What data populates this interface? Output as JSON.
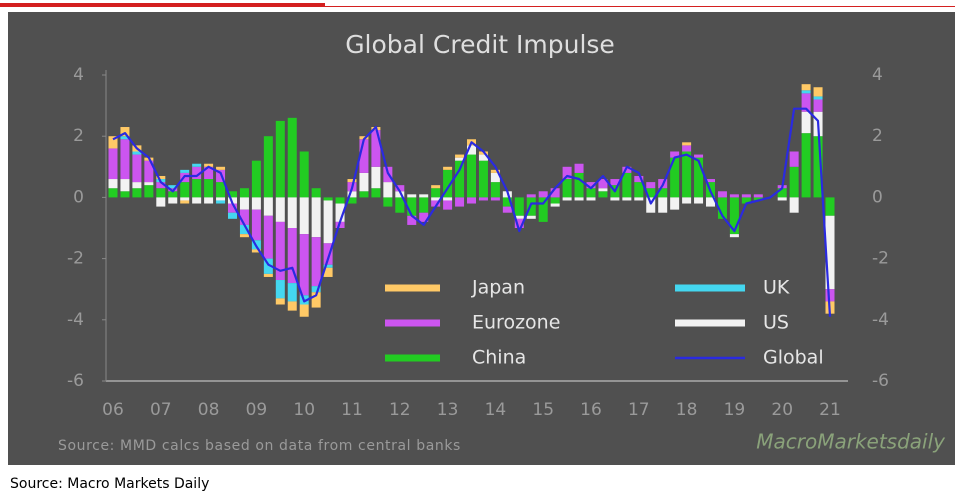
{
  "chart_data": {
    "type": "bar",
    "stacked": true,
    "title": "Global Credit Impulse",
    "source_note": "Source: MMD calcs based on data from central banks",
    "logo": "MacroMarketsdaily",
    "caption": "Source: Macro Markets Daily",
    "categories": [
      "06",
      null,
      null,
      null,
      "07",
      null,
      null,
      null,
      "08",
      null,
      null,
      null,
      "09",
      null,
      null,
      null,
      "10",
      null,
      null,
      null,
      "11",
      null,
      null,
      null,
      "12",
      null,
      null,
      null,
      "13",
      null,
      null,
      null,
      "14",
      null,
      null,
      null,
      "15",
      null,
      null,
      null,
      "16",
      null,
      null,
      null,
      "17",
      null,
      null,
      null,
      "18",
      null,
      null,
      null,
      "19",
      null,
      null,
      null,
      "20",
      null,
      null,
      null,
      "21"
    ],
    "ylim": [
      -6,
      4
    ],
    "yticks": [
      -6,
      -4,
      -2,
      0,
      2,
      4
    ],
    "series": [
      {
        "name": "Japan",
        "color": "#ffc966",
        "values": [
          0.4,
          0.3,
          0.2,
          0.1,
          0.1,
          0.0,
          -0.1,
          0.0,
          0.1,
          0.1,
          0.0,
          -0.1,
          -0.1,
          -0.1,
          -0.2,
          -0.3,
          -0.4,
          -0.5,
          -0.3,
          0.0,
          0.1,
          0.1,
          0.1,
          0.0,
          0.0,
          0.0,
          0.0,
          0.1,
          0.1,
          0.1,
          0.2,
          0.1,
          0.1,
          0.0,
          0.0,
          0.0,
          0.0,
          0.0,
          0.0,
          0.0,
          0.0,
          0.0,
          0.0,
          0.0,
          0.0,
          0.0,
          0.0,
          0.0,
          0.1,
          0.0,
          0.0,
          0.0,
          0.0,
          0.0,
          0.0,
          0.0,
          0.0,
          0.0,
          0.2,
          0.3,
          -0.4
        ]
      },
      {
        "name": "UK",
        "color": "#44d7f0",
        "values": [
          0.0,
          0.1,
          0.1,
          0.0,
          0.1,
          0.1,
          0.1,
          0.1,
          0.0,
          -0.1,
          -0.2,
          -0.3,
          -0.3,
          -0.5,
          -0.6,
          -0.6,
          -0.3,
          -0.2,
          -0.1,
          0.0,
          0.0,
          0.0,
          0.0,
          0.0,
          0.0,
          0.0,
          0.0,
          0.0,
          0.0,
          0.0,
          0.0,
          0.0,
          0.0,
          0.0,
          0.0,
          0.0,
          0.0,
          0.0,
          0.0,
          0.0,
          0.0,
          0.0,
          0.0,
          0.0,
          0.0,
          0.0,
          0.0,
          0.0,
          0.0,
          0.0,
          0.0,
          0.0,
          0.0,
          0.0,
          0.0,
          0.0,
          0.0,
          0.0,
          0.1,
          0.1,
          0.0
        ]
      },
      {
        "name": "Eurozone",
        "color": "#cc55f0",
        "values": [
          1.0,
          1.3,
          0.9,
          0.7,
          0.2,
          0.1,
          0.3,
          0.4,
          0.4,
          0.4,
          -0.3,
          -0.5,
          -1.0,
          -1.4,
          -1.9,
          -1.8,
          -2.0,
          -1.6,
          -0.7,
          -0.2,
          0.3,
          1.1,
          1.2,
          0.5,
          0.2,
          -0.3,
          -0.3,
          -0.2,
          -0.3,
          -0.3,
          -0.2,
          -0.1,
          -0.1,
          -0.2,
          -0.3,
          0.1,
          0.2,
          0.3,
          0.4,
          0.3,
          0.2,
          0.3,
          0.2,
          0.2,
          0.2,
          0.2,
          0.3,
          0.2,
          0.2,
          0.1,
          0.1,
          0.2,
          0.1,
          0.1,
          0.1,
          0.0,
          0.1,
          0.5,
          0.6,
          0.4,
          -0.4
        ]
      },
      {
        "name": "US",
        "color": "#f2f2f2",
        "values": [
          0.3,
          0.4,
          0.2,
          0.1,
          -0.3,
          -0.2,
          -0.1,
          -0.2,
          -0.2,
          -0.1,
          -0.2,
          -0.4,
          -0.4,
          -0.6,
          -0.8,
          -1.0,
          -1.2,
          -1.3,
          -1.4,
          -0.6,
          0.2,
          0.6,
          0.7,
          0.5,
          0.2,
          0.1,
          0.1,
          -0.1,
          -0.1,
          0.1,
          0.3,
          0.2,
          0.3,
          0.2,
          -0.1,
          -0.1,
          0.0,
          -0.1,
          -0.1,
          -0.1,
          -0.1,
          0.1,
          -0.1,
          -0.1,
          -0.1,
          -0.5,
          -0.5,
          -0.4,
          -0.2,
          -0.2,
          -0.3,
          0.0,
          -0.1,
          0.0,
          0.0,
          0.0,
          -0.1,
          -0.5,
          0.7,
          0.8,
          -2.4
        ]
      },
      {
        "name": "China",
        "color": "#22cc22",
        "values": [
          0.3,
          0.2,
          0.3,
          0.4,
          0.3,
          0.2,
          0.5,
          0.6,
          0.6,
          0.5,
          0.2,
          0.3,
          1.2,
          2.0,
          2.5,
          2.6,
          1.5,
          0.3,
          -0.1,
          -0.2,
          -0.2,
          0.2,
          0.3,
          -0.3,
          -0.5,
          -0.6,
          -0.5,
          0.3,
          0.9,
          1.2,
          1.4,
          1.2,
          0.5,
          -0.3,
          -0.6,
          -0.6,
          -0.8,
          -0.2,
          0.6,
          0.8,
          0.3,
          0.2,
          0.4,
          0.8,
          0.5,
          0.3,
          0.3,
          1.3,
          1.5,
          1.3,
          0.5,
          -0.7,
          -1.2,
          -0.2,
          -0.1,
          0.0,
          0.3,
          1.0,
          2.1,
          2.0,
          -0.6
        ]
      },
      {
        "name": "Global",
        "color": "#2a2ae0",
        "type": "line",
        "values": [
          1.9,
          2.1,
          1.6,
          1.3,
          0.5,
          0.2,
          0.7,
          0.7,
          1.0,
          0.8,
          -0.2,
          -0.9,
          -1.6,
          -2.2,
          -2.4,
          -2.3,
          -3.4,
          -3.2,
          -2.0,
          -0.8,
          0.3,
          1.9,
          2.3,
          0.8,
          0.2,
          -0.6,
          -0.9,
          -0.3,
          0.3,
          0.9,
          1.8,
          1.5,
          1.0,
          0.2,
          -1.1,
          -0.2,
          -0.2,
          0.3,
          0.7,
          0.6,
          0.3,
          0.7,
          0.2,
          1.0,
          0.8,
          -0.2,
          0.4,
          1.3,
          1.4,
          1.2,
          0.2,
          -0.6,
          -1.1,
          -0.2,
          -0.1,
          0.0,
          0.3,
          2.9,
          2.9,
          2.5,
          -3.9
        ]
      }
    ]
  }
}
